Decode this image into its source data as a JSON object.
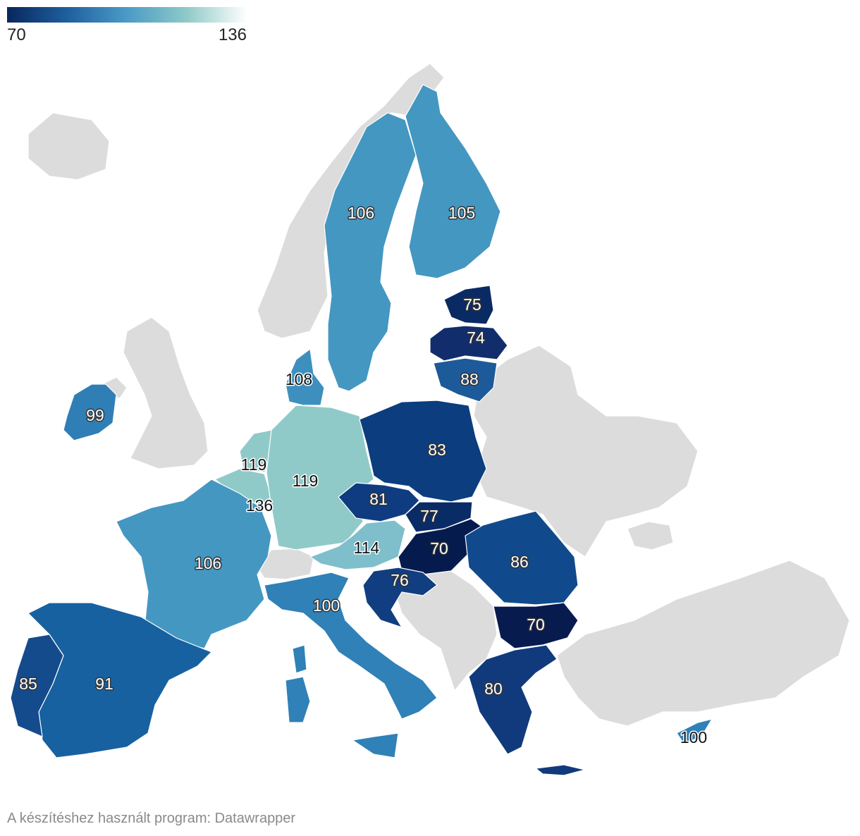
{
  "legend": {
    "min_label": "70",
    "max_label": "136"
  },
  "credit": "A készítéshez használt program: Datawrapper",
  "colors": {
    "no_data": "#dcdcdc",
    "scale": [
      "#08275c",
      "#1f5f9f",
      "#4a9bc5",
      "#8fcac8",
      "#ffffff"
    ]
  },
  "regions": [
    {
      "name": "Sweden",
      "value": "106"
    },
    {
      "name": "Finland",
      "value": "105"
    },
    {
      "name": "Estonia",
      "value": "75"
    },
    {
      "name": "Latvia",
      "value": "74"
    },
    {
      "name": "Lithuania",
      "value": "88"
    },
    {
      "name": "Denmark",
      "value": "108"
    },
    {
      "name": "Ireland",
      "value": "99"
    },
    {
      "name": "Netherlands",
      "value": "119"
    },
    {
      "name": "Germany",
      "value": "119"
    },
    {
      "name": "Luxembourg",
      "value": "136"
    },
    {
      "name": "Poland",
      "value": "83"
    },
    {
      "name": "Czechia",
      "value": "81"
    },
    {
      "name": "Slovakia",
      "value": "77"
    },
    {
      "name": "Austria",
      "value": "114"
    },
    {
      "name": "Hungary",
      "value": "70"
    },
    {
      "name": "Romania",
      "value": "86"
    },
    {
      "name": "France",
      "value": "106"
    },
    {
      "name": "Slovenia/Croatia",
      "value": "76"
    },
    {
      "name": "Italy",
      "value": "100"
    },
    {
      "name": "Bulgaria",
      "value": "70"
    },
    {
      "name": "Spain",
      "value": "91"
    },
    {
      "name": "Portugal",
      "value": "85"
    },
    {
      "name": "Greece",
      "value": "80"
    },
    {
      "name": "Cyprus",
      "value": "100"
    }
  ]
}
